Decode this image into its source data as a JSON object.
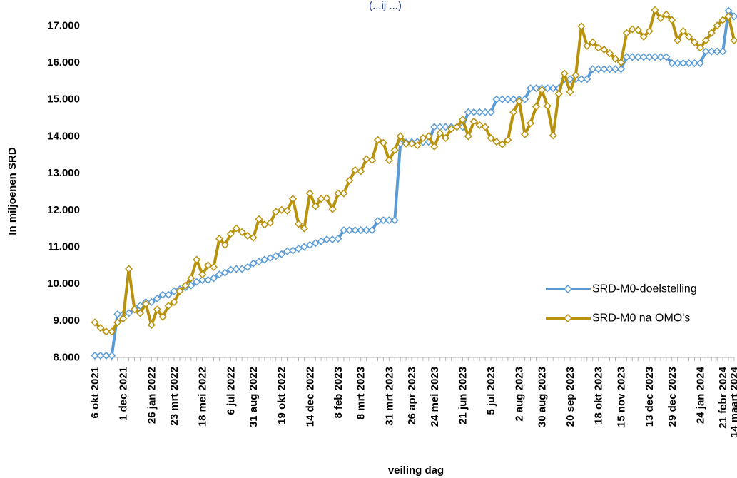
{
  "chart_data": {
    "type": "line",
    "title_fragment": "(...ij ...)",
    "ylabel": "In miljoenen SRD",
    "xlabel": "veiling dag",
    "ylim": [
      8000,
      17500
    ],
    "yticks": [
      8000,
      9000,
      10000,
      11000,
      12000,
      13000,
      14000,
      15000,
      16000,
      17000
    ],
    "ytick_labels": [
      "8.000",
      "9.000",
      "10.000",
      "11.000",
      "12.000",
      "13.000",
      "14.000",
      "15.000",
      "16.000",
      "17.000"
    ],
    "grid": false,
    "legend_position": "bottom-right",
    "n_points": 114,
    "category_ticks": [
      {
        "index": 0,
        "label": "6 okt 2021"
      },
      {
        "index": 5,
        "label": "1 dec 2021"
      },
      {
        "index": 10,
        "label": "26 jan 2022"
      },
      {
        "index": 14,
        "label": "23 mrt 2022"
      },
      {
        "index": 19,
        "label": "18 mei 2022"
      },
      {
        "index": 24,
        "label": "6 jul 2022"
      },
      {
        "index": 28,
        "label": "31 aug 2022"
      },
      {
        "index": 33,
        "label": "19 okt 2022"
      },
      {
        "index": 38,
        "label": "14 dec 2022"
      },
      {
        "index": 43,
        "label": "8 feb 2023"
      },
      {
        "index": 47,
        "label": "8 mrt 2023"
      },
      {
        "index": 52,
        "label": "31 mrt 2023"
      },
      {
        "index": 56,
        "label": "26 apr 2023"
      },
      {
        "index": 60,
        "label": "24 mei 2023"
      },
      {
        "index": 65,
        "label": "21 jun 2023"
      },
      {
        "index": 70,
        "label": "5 jul 2023"
      },
      {
        "index": 75,
        "label": "2 aug 2023"
      },
      {
        "index": 79,
        "label": "30 aug 2023"
      },
      {
        "index": 84,
        "label": "20 sep 2023"
      },
      {
        "index": 89,
        "label": "18 okt 2023"
      },
      {
        "index": 93,
        "label": "15 nov 2023"
      },
      {
        "index": 98,
        "label": "13 dec 2023"
      },
      {
        "index": 102,
        "label": "29 dec 2023"
      },
      {
        "index": 107,
        "label": "24 jan 2024"
      },
      {
        "index": 111,
        "label": "21 febr 2024"
      },
      {
        "index": 113,
        "label": "14 maart 2024"
      }
    ],
    "series": [
      {
        "name": "SRD-M0-doelstelling",
        "color": "#5b9bd5",
        "marker": "diamond-open",
        "values": [
          8050,
          8050,
          8050,
          8050,
          9170,
          9170,
          9200,
          9300,
          9400,
          9500,
          9500,
          9600,
          9700,
          9700,
          9800,
          9850,
          9900,
          9950,
          10050,
          10100,
          10100,
          10150,
          10250,
          10300,
          10380,
          10400,
          10400,
          10450,
          10550,
          10600,
          10650,
          10700,
          10750,
          10800,
          10880,
          10900,
          10950,
          11000,
          11050,
          11100,
          11150,
          11200,
          11200,
          11220,
          11450,
          11450,
          11450,
          11450,
          11450,
          11450,
          11700,
          11720,
          11720,
          11720,
          13800,
          13830,
          13840,
          13850,
          13840,
          13850,
          14250,
          14250,
          14250,
          14250,
          14250,
          14250,
          14650,
          14650,
          14650,
          14650,
          14650,
          15000,
          15000,
          15000,
          15000,
          15000,
          15000,
          15300,
          15300,
          15300,
          15300,
          15300,
          15300,
          15550,
          15550,
          15550,
          15550,
          15550,
          15820,
          15820,
          15820,
          15820,
          15820,
          15820,
          16150,
          16150,
          16150,
          16150,
          16150,
          16150,
          16150,
          16150,
          15980,
          15980,
          15980,
          15980,
          15980,
          15980,
          16300,
          16300,
          16300,
          16300,
          17400,
          17250
        ]
      },
      {
        "name": "SRD-M0 na OMO's",
        "color": "#b8920c",
        "marker": "diamond-open",
        "values": [
          8950,
          8800,
          8700,
          8700,
          8950,
          9050,
          10400,
          9300,
          9200,
          9450,
          8880,
          9300,
          9100,
          9400,
          9500,
          9800,
          9950,
          10150,
          10650,
          10250,
          10500,
          10450,
          11220,
          11050,
          11350,
          11500,
          11400,
          11300,
          11250,
          11750,
          11600,
          11650,
          11950,
          12000,
          11980,
          12300,
          11620,
          11500,
          12450,
          12100,
          12300,
          12320,
          12020,
          12450,
          12450,
          12800,
          13080,
          13050,
          13380,
          13350,
          13900,
          13820,
          13350,
          13620,
          14000,
          13800,
          13800,
          13750,
          13950,
          14000,
          13720,
          14080,
          13950,
          14200,
          14250,
          14450,
          14000,
          14400,
          14300,
          14250,
          13950,
          13850,
          13780,
          13900,
          14650,
          14950,
          14050,
          14350,
          14800,
          15250,
          14820,
          14020,
          15150,
          15700,
          15200,
          15650,
          16980,
          16450,
          16550,
          16400,
          16350,
          16250,
          16100,
          16000,
          16800,
          16900,
          16880,
          16700,
          16850,
          17420,
          17200,
          17300,
          17150,
          16600,
          16850,
          16700,
          16550,
          16400,
          16600,
          16800,
          17000,
          17150,
          17250,
          16600
        ]
      }
    ]
  }
}
